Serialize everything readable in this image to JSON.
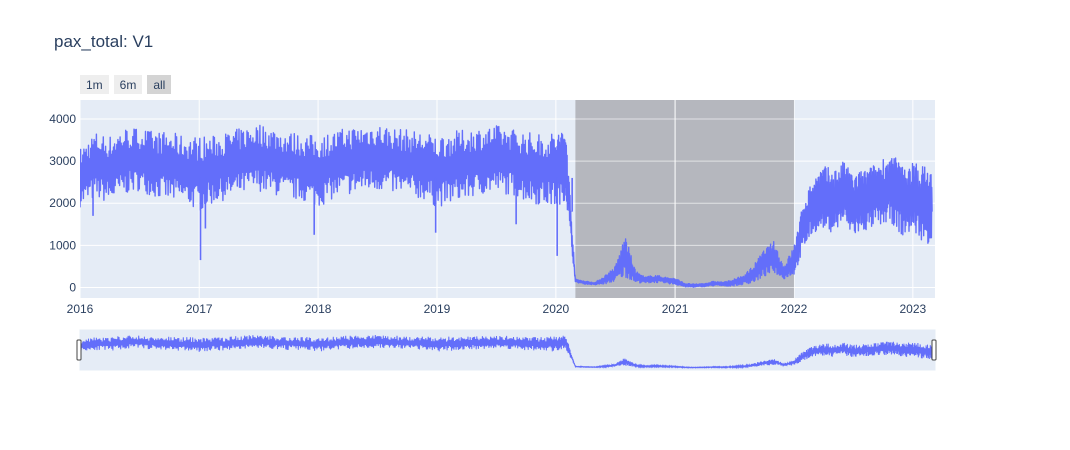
{
  "chart_data": {
    "type": "line",
    "title": "pax_total: V1",
    "xlabel": "",
    "ylabel": "",
    "xlim": [
      "2016-01-01",
      "2023-03-10"
    ],
    "ylim": [
      -250,
      4450
    ],
    "grid": true,
    "y_ticks": [
      0,
      1000,
      2000,
      3000,
      4000
    ],
    "x_ticks": [
      "2016",
      "2017",
      "2018",
      "2019",
      "2020",
      "2021",
      "2022",
      "2023"
    ],
    "range_selector": {
      "buttons": [
        "1m",
        "6m",
        "all"
      ],
      "active": "all"
    },
    "highlight_band": {
      "start": "2020-03-01",
      "end": "2022-01-01",
      "color": "#b2b4ba"
    },
    "rangeslider": true,
    "series": [
      {
        "color": "#636efa",
        "x": [
          "2016-01-01",
          "2016-02-15",
          "2016-04-01",
          "2016-05-15",
          "2016-07-01",
          "2016-08-15",
          "2016-10-01",
          "2016-11-15",
          "2017-01-01",
          "2017-02-15",
          "2017-04-01",
          "2017-05-15",
          "2017-07-01",
          "2017-08-15",
          "2017-10-01",
          "2017-11-15",
          "2018-01-01",
          "2018-02-15",
          "2018-04-01",
          "2018-05-15",
          "2018-07-01",
          "2018-08-15",
          "2018-10-01",
          "2018-11-15",
          "2019-01-01",
          "2019-02-15",
          "2019-04-01",
          "2019-05-15",
          "2019-07-01",
          "2019-08-15",
          "2019-10-01",
          "2019-11-15",
          "2020-01-01",
          "2020-02-01",
          "2020-03-01",
          "2020-04-01",
          "2020-05-01",
          "2020-06-01",
          "2020-07-01",
          "2020-08-01",
          "2020-09-01",
          "2020-10-01",
          "2020-11-01",
          "2020-12-01",
          "2021-01-01",
          "2021-02-01",
          "2021-03-01",
          "2021-04-01",
          "2021-05-01",
          "2021-06-01",
          "2021-07-01",
          "2021-08-01",
          "2021-09-01",
          "2021-10-01",
          "2021-11-01",
          "2021-12-01",
          "2022-01-01",
          "2022-02-01",
          "2022-03-01",
          "2022-04-01",
          "2022-05-01",
          "2022-06-01",
          "2022-07-01",
          "2022-08-01",
          "2022-09-01",
          "2022-10-01",
          "2022-11-01",
          "2022-12-01",
          "2023-01-01",
          "2023-02-01",
          "2023-03-01"
        ],
        "y": [
          2600,
          2900,
          2850,
          3000,
          3050,
          2950,
          2900,
          2850,
          2700,
          2800,
          2900,
          3000,
          3100,
          3000,
          2950,
          2900,
          2800,
          2900,
          3000,
          3050,
          3100,
          3050,
          3000,
          2950,
          2800,
          2850,
          2950,
          3000,
          3050,
          3000,
          2900,
          2850,
          2800,
          2900,
          150,
          100,
          90,
          120,
          300,
          700,
          250,
          150,
          200,
          180,
          150,
          50,
          40,
          60,
          80,
          70,
          100,
          150,
          300,
          500,
          700,
          300,
          600,
          1500,
          2000,
          2200,
          2100,
          2300,
          2000,
          2100,
          2200,
          2300,
          2400,
          2100,
          2200,
          2000,
          1800
        ],
        "y_low": [
          1900,
          2100,
          2000,
          2200,
          2300,
          2150,
          2050,
          2000,
          1800,
          2000,
          2100,
          2200,
          2300,
          2200,
          2100,
          2050,
          1900,
          2100,
          2200,
          2250,
          2300,
          2250,
          2150,
          2100,
          1900,
          2000,
          2100,
          2200,
          2250,
          2200,
          2050,
          1950,
          1900,
          2100,
          120,
          80,
          60,
          80,
          150,
          250,
          120,
          100,
          120,
          100,
          70,
          10,
          5,
          20,
          40,
          30,
          40,
          70,
          120,
          250,
          350,
          200,
          300,
          900,
          1300,
          1400,
          1300,
          1500,
          1200,
          1300,
          1400,
          1500,
          1500,
          1200,
          1300,
          1100,
          1000
        ],
        "y_high": [
          3300,
          3700,
          3600,
          3800,
          3800,
          3700,
          3700,
          3600,
          3600,
          3600,
          3700,
          3800,
          3900,
          3800,
          3700,
          3650,
          3600,
          3700,
          3800,
          3850,
          3900,
          3800,
          3750,
          3700,
          3600,
          3700,
          3750,
          3800,
          3850,
          3800,
          3700,
          3650,
          3700,
          3800,
          200,
          150,
          120,
          300,
          500,
          1250,
          400,
          250,
          300,
          250,
          220,
          100,
          80,
          100,
          150,
          130,
          200,
          300,
          550,
          900,
          1100,
          500,
          1000,
          2100,
          2600,
          2900,
          2800,
          3000,
          2700,
          2800,
          2900,
          3100,
          3150,
          2900,
          3000,
          2900,
          2800
        ],
        "dips": [
          {
            "x": "2016-02-10",
            "y": 1700
          },
          {
            "x": "2017-01-05",
            "y": 650
          },
          {
            "x": "2017-01-20",
            "y": 1400
          },
          {
            "x": "2017-12-20",
            "y": 1250
          },
          {
            "x": "2018-12-28",
            "y": 1300
          },
          {
            "x": "2019-09-01",
            "y": 1500
          },
          {
            "x": "2020-01-05",
            "y": 750
          },
          {
            "x": "2020-02-20",
            "y": 1800
          }
        ]
      }
    ]
  }
}
